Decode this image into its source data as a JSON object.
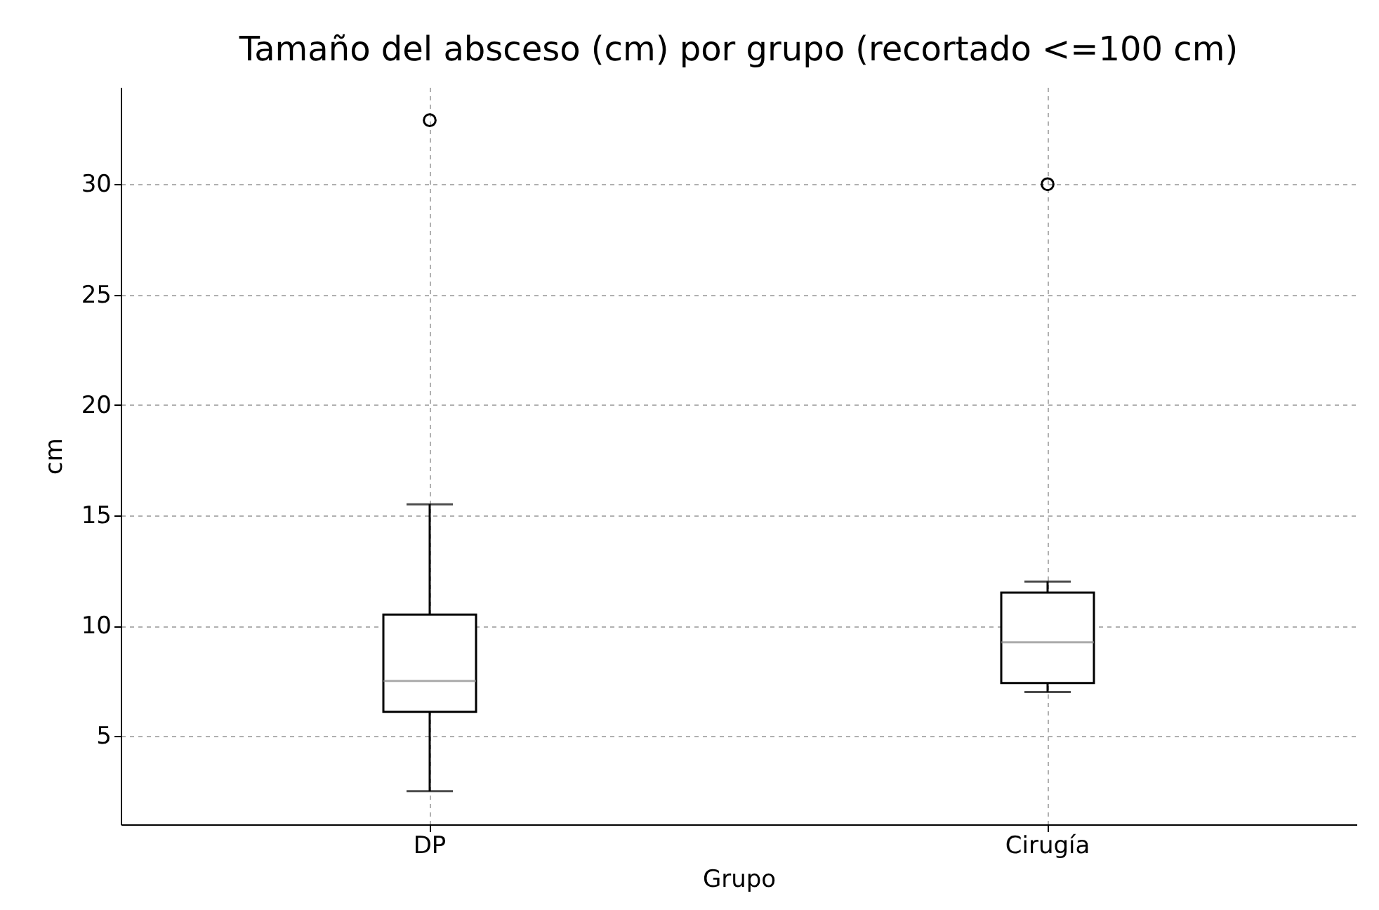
{
  "chart_data": {
    "type": "box",
    "title": "Tamaño del absceso (cm) por grupo (recortado <=100 cm)",
    "xlabel": "Grupo",
    "ylabel": "cm",
    "categories": [
      "DP",
      "Cirugía"
    ],
    "boxes": [
      {
        "low": 2.5,
        "q1": 6.1,
        "median": 7.5,
        "q3": 10.5,
        "high": 15.5,
        "outliers": [
          32.9
        ]
      },
      {
        "low": 7.0,
        "q1": 7.4,
        "median": 9.25,
        "q3": 11.5,
        "high": 12.0,
        "outliers": [
          30
        ]
      }
    ],
    "ylim": [
      1.0,
      34.4
    ],
    "yticks": [
      5,
      10,
      15,
      20,
      25,
      30
    ],
    "grid": true
  }
}
